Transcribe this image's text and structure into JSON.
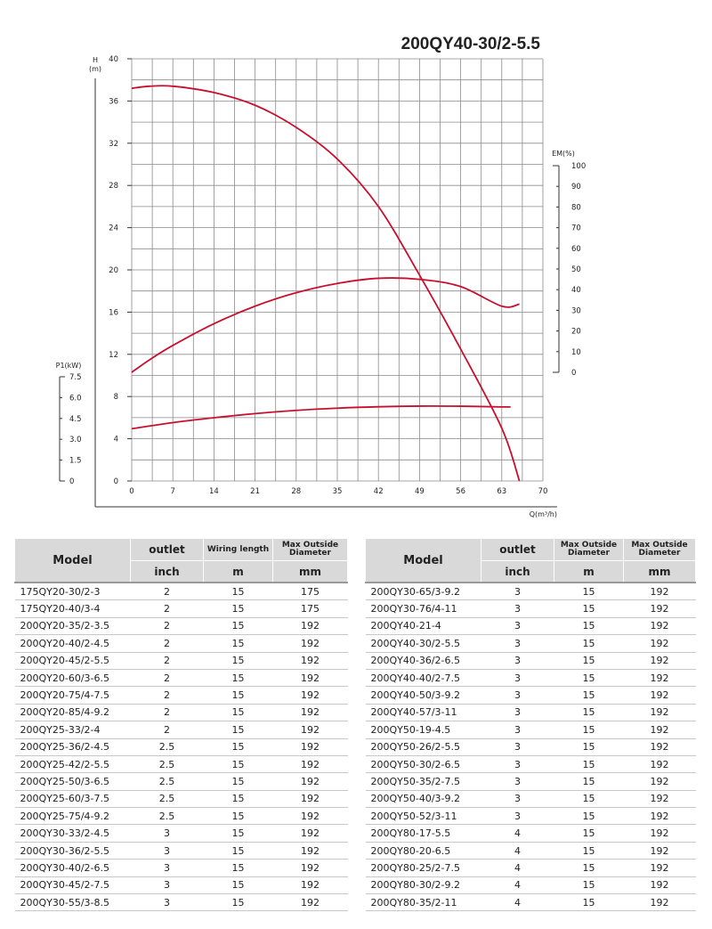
{
  "chart_data": {
    "type": "line",
    "title": "200QY40-30/2-5.5",
    "x": {
      "label": "Q(m³/h)",
      "range": [
        0,
        70
      ],
      "ticks": [
        0,
        7,
        14,
        21,
        28,
        35,
        42,
        49,
        56,
        63,
        70
      ],
      "tick_labels": [
        "0",
        "7",
        "14",
        "21",
        "28",
        "35",
        "42",
        "49",
        "56",
        "63",
        "70"
      ]
    },
    "y_left": {
      "label_line1": "H",
      "label_line2": "(m)",
      "range": [
        0,
        40
      ],
      "ticks": [
        0,
        4,
        8,
        12,
        16,
        20,
        24,
        28,
        32,
        36,
        40
      ],
      "tick_labels": [
        "0",
        "4",
        "8",
        "12",
        "16",
        "20",
        "24",
        "28",
        "32",
        "36",
        "40"
      ]
    },
    "y_right": {
      "label": "EM(%)",
      "range": [
        0,
        100
      ],
      "ticks": [
        0,
        10,
        20,
        30,
        40,
        50,
        60,
        70,
        80,
        90,
        100
      ],
      "tick_labels": [
        "0",
        "10",
        "20",
        "30",
        "40",
        "50",
        "60",
        "70",
        "80",
        "90",
        "100"
      ]
    },
    "y_power": {
      "label": "P1(kW)",
      "range": [
        0,
        7.5
      ],
      "ticks": [
        0,
        1.5,
        3.0,
        4.5,
        6.0,
        7.5
      ],
      "tick_labels": [
        "0",
        "1.5",
        "3.0",
        "4.5",
        "6.0",
        "7.5"
      ]
    },
    "grid": true,
    "line_color": "#c8102e",
    "series": [
      {
        "axis": "y_left",
        "points": [
          [
            0,
            37.2
          ],
          [
            3,
            37.4
          ],
          [
            7,
            37.4
          ],
          [
            14,
            36.8
          ],
          [
            21,
            35.6
          ],
          [
            28,
            33.5
          ],
          [
            35,
            30.5
          ],
          [
            42,
            26.0
          ],
          [
            49,
            19.5
          ],
          [
            56,
            12.5
          ],
          [
            63,
            5.0
          ],
          [
            66,
            0
          ]
        ]
      },
      {
        "axis": "y_right",
        "points": [
          [
            0,
            0
          ],
          [
            3,
            6
          ],
          [
            7,
            13
          ],
          [
            14,
            23.5
          ],
          [
            21,
            32
          ],
          [
            28,
            38.5
          ],
          [
            35,
            43
          ],
          [
            42,
            45.5
          ],
          [
            49,
            45
          ],
          [
            56,
            41.5
          ],
          [
            63,
            32
          ],
          [
            66,
            33
          ]
        ]
      },
      {
        "axis": "y_power",
        "points": [
          [
            0,
            3.76
          ],
          [
            7,
            4.2
          ],
          [
            14,
            4.55
          ],
          [
            21,
            4.85
          ],
          [
            28,
            5.08
          ],
          [
            35,
            5.24
          ],
          [
            42,
            5.34
          ],
          [
            49,
            5.39
          ],
          [
            56,
            5.38
          ],
          [
            63,
            5.33
          ],
          [
            64.5,
            5.33
          ]
        ]
      }
    ]
  },
  "tables": [
    {
      "headers": {
        "model": "Model",
        "col1": "outlet",
        "col2": "Wiring length",
        "col3": "Max Outside Diameter"
      },
      "units": {
        "col1": "inch",
        "col2": "m",
        "col3": "mm"
      },
      "rows": [
        [
          "175QY20-30/2-3",
          "2",
          "15",
          "175"
        ],
        [
          "175QY20-40/3-4",
          "2",
          "15",
          "175"
        ],
        [
          "200QY20-35/2-3.5",
          "2",
          "15",
          "192"
        ],
        [
          "200QY20-40/2-4.5",
          "2",
          "15",
          "192"
        ],
        [
          "200QY20-45/2-5.5",
          "2",
          "15",
          "192"
        ],
        [
          "200QY20-60/3-6.5",
          "2",
          "15",
          "192"
        ],
        [
          "200QY20-75/4-7.5",
          "2",
          "15",
          "192"
        ],
        [
          "200QY20-85/4-9.2",
          "2",
          "15",
          "192"
        ],
        [
          "200QY25-33/2-4",
          "2",
          "15",
          "192"
        ],
        [
          "200QY25-36/2-4.5",
          "2.5",
          "15",
          "192"
        ],
        [
          "200QY25-42/2-5.5",
          "2.5",
          "15",
          "192"
        ],
        [
          "200QY25-50/3-6.5",
          "2.5",
          "15",
          "192"
        ],
        [
          "200QY25-60/3-7.5",
          "2.5",
          "15",
          "192"
        ],
        [
          "200QY25-75/4-9.2",
          "2.5",
          "15",
          "192"
        ],
        [
          "200QY30-33/2-4.5",
          "3",
          "15",
          "192"
        ],
        [
          "200QY30-36/2-5.5",
          "3",
          "15",
          "192"
        ],
        [
          "200QY30-40/2-6.5",
          "3",
          "15",
          "192"
        ],
        [
          "200QY30-45/2-7.5",
          "3",
          "15",
          "192"
        ],
        [
          "200QY30-55/3-8.5",
          "3",
          "15",
          "192"
        ]
      ]
    },
    {
      "headers": {
        "model": "Model",
        "col1": "outlet",
        "col2": "Max Outside Diameter",
        "col3": "Max Outside Diameter"
      },
      "units": {
        "col1": "inch",
        "col2": "m",
        "col3": "mm"
      },
      "rows": [
        [
          "200QY30-65/3-9.2",
          "3",
          "15",
          "192"
        ],
        [
          "200QY30-76/4-11",
          "3",
          "15",
          "192"
        ],
        [
          "200QY40-21-4",
          "3",
          "15",
          "192"
        ],
        [
          "200QY40-30/2-5.5",
          "3",
          "15",
          "192"
        ],
        [
          "200QY40-36/2-6.5",
          "3",
          "15",
          "192"
        ],
        [
          "200QY40-40/2-7.5",
          "3",
          "15",
          "192"
        ],
        [
          "200QY40-50/3-9.2",
          "3",
          "15",
          "192"
        ],
        [
          "200QY40-57/3-11",
          "3",
          "15",
          "192"
        ],
        [
          "200QY50-19-4.5",
          "3",
          "15",
          "192"
        ],
        [
          "200QY50-26/2-5.5",
          "3",
          "15",
          "192"
        ],
        [
          "200QY50-30/2-6.5",
          "3",
          "15",
          "192"
        ],
        [
          "200QY50-35/2-7.5",
          "3",
          "15",
          "192"
        ],
        [
          "200QY50-40/3-9.2",
          "3",
          "15",
          "192"
        ],
        [
          "200QY50-52/3-11",
          "3",
          "15",
          "192"
        ],
        [
          "200QY80-17-5.5",
          "4",
          "15",
          "192"
        ],
        [
          "200QY80-20-6.5",
          "4",
          "15",
          "192"
        ],
        [
          "200QY80-25/2-7.5",
          "4",
          "15",
          "192"
        ],
        [
          "200QY80-30/2-9.2",
          "4",
          "15",
          "192"
        ],
        [
          "200QY80-35/2-11",
          "4",
          "15",
          "192"
        ]
      ]
    }
  ]
}
